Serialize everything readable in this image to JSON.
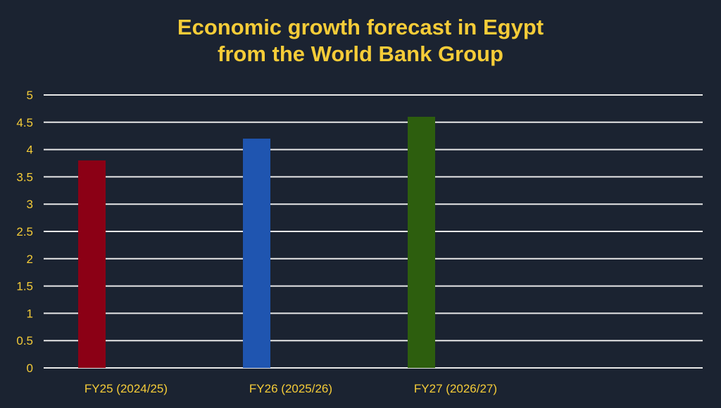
{
  "chart_data": {
    "type": "bar",
    "title_line1": "Economic growth forecast in Egypt",
    "title_line2": "from the World Bank Group",
    "categories": [
      "FY25 (2024/25)",
      "FY26 (2025/26)",
      "FY27 (2026/27)"
    ],
    "values": [
      3.8,
      4.2,
      4.6
    ],
    "colors": [
      "#8b0015",
      "#1f55b0",
      "#2d5e0e"
    ],
    "yticks": [
      "0",
      "0.5",
      "1",
      "1.5",
      "2",
      "2.5",
      "3",
      "3.5",
      "4",
      "4.5",
      "5"
    ],
    "ylim": [
      0,
      5
    ],
    "xlabel": "",
    "ylabel": "",
    "grid": true,
    "text_color": "#f5cc38",
    "grid_color": "#e8e8e8"
  }
}
